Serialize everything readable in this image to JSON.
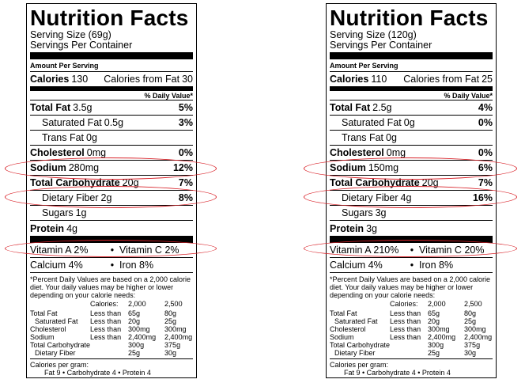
{
  "colors": {
    "highlight_ellipse": "#d9232a",
    "text": "#000000",
    "background": "#ffffff"
  },
  "shared": {
    "title": "Nutrition Facts",
    "servings_per_container": "Servings Per Container",
    "amount_per_serving": "Amount Per Serving",
    "calories_label": "Calories",
    "calories_from_fat_label": "Calories from Fat",
    "daily_value_header": "% Daily Value*",
    "total_fat_label": "Total Fat",
    "saturated_fat_label": "Saturated Fat",
    "trans_fat_label": "Trans Fat",
    "cholesterol_label": "Cholesterol",
    "sodium_label": "Sodium",
    "total_carb_label": "Total Carbohydrate",
    "dietary_fiber_label": "Dietary Fiber",
    "sugars_label": "Sugars",
    "protein_label": "Protein",
    "vitamin_a_label": "Vitamin A",
    "vitamin_c_label": "Vitamin C",
    "calcium_label": "Calcium",
    "iron_label": "Iron",
    "bullet": "•",
    "footnote": "*Percent Daily Values are based on a 2,000 calorie diet. Your daily values may be higher or lower depending on your calorie needs:",
    "ref_table": {
      "header": [
        "Calories:",
        "2,000",
        "2,500"
      ],
      "rows": [
        [
          "Total Fat",
          "Less than",
          "65g",
          "80g"
        ],
        [
          "Saturated Fat",
          "Less than",
          "20g",
          "25g"
        ],
        [
          "Cholesterol",
          "Less than",
          "300mg",
          "300mg"
        ],
        [
          "Sodium",
          "Less than",
          "2,400mg",
          "2,400mg"
        ],
        [
          "Total Carbohydrate",
          "",
          "300g",
          "375g"
        ],
        [
          "Dietary Fiber",
          "",
          "25g",
          "30g"
        ]
      ]
    },
    "calories_per_gram": "Calories per gram:",
    "calories_per_gram_line": "Fat 9  •  Carbohydrate 4  •  Protein 4"
  },
  "labels": [
    {
      "serving_size": "Serving Size (69g)",
      "calories": "130",
      "calories_from_fat": "30",
      "total_fat": "3.5g",
      "total_fat_dv": "5%",
      "saturated_fat": "0.5g",
      "saturated_fat_dv": "3%",
      "trans_fat": "0g",
      "cholesterol": "0mg",
      "cholesterol_dv": "0%",
      "sodium": "280mg",
      "sodium_dv": "12%",
      "total_carb": "20g",
      "total_carb_dv": "7%",
      "dietary_fiber": "2g",
      "dietary_fiber_dv": "8%",
      "sugars": "1g",
      "protein": "4g",
      "vitamin_a": "2%",
      "vitamin_c": "2%",
      "calcium": "4%",
      "iron": "8%"
    },
    {
      "serving_size": "Serving Size (120g)",
      "calories": "110",
      "calories_from_fat": "25",
      "total_fat": "2.5g",
      "total_fat_dv": "4%",
      "saturated_fat": "0g",
      "saturated_fat_dv": "0%",
      "trans_fat": "0g",
      "cholesterol": "0mg",
      "cholesterol_dv": "0%",
      "sodium": "150mg",
      "sodium_dv": "6%",
      "total_carb": "20g",
      "total_carb_dv": "7%",
      "dietary_fiber": "4g",
      "dietary_fiber_dv": "16%",
      "sugars": "3g",
      "protein": "3g",
      "vitamin_a": "210%",
      "vitamin_c": "20%",
      "calcium": "4%",
      "iron": "8%"
    }
  ]
}
